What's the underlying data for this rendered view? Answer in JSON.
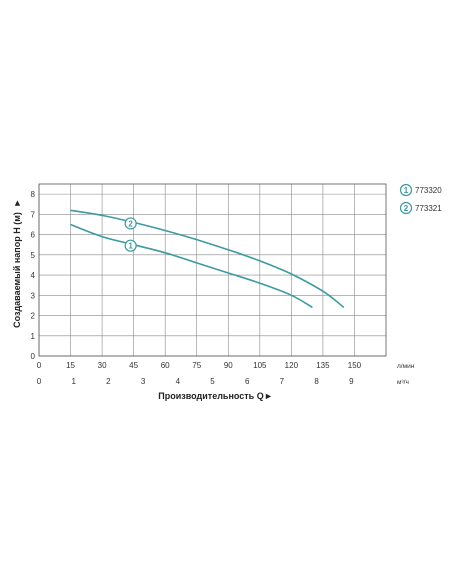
{
  "chart_data": {
    "type": "line",
    "ylabel": "Создаваемый напор H (м)",
    "xlabel": "Производительность Q",
    "ylim": [
      0,
      8.5
    ],
    "y_ticks": [
      0,
      1,
      2,
      3,
      4,
      5,
      6,
      7,
      8
    ],
    "x_primary_unit": "л/мин",
    "x_primary_ticks": [
      "0",
      "15",
      "30",
      "45",
      "60",
      "75",
      "90",
      "105",
      "120",
      "135",
      "150"
    ],
    "x_secondary_unit": "м³/ч",
    "x_secondary_ticks": [
      "0",
      "1",
      "2",
      "3",
      "4",
      "5",
      "6",
      "7",
      "8",
      "9"
    ],
    "grid": true,
    "legend_position": "right",
    "series": [
      {
        "name": "773320",
        "marker": "1",
        "color": "#3c9aa0",
        "x": [
          15,
          30,
          45,
          60,
          75,
          90,
          105,
          120,
          130
        ],
        "y": [
          6.5,
          5.9,
          5.5,
          5.1,
          4.6,
          4.1,
          3.6,
          3.0,
          2.4
        ]
      },
      {
        "name": "773321",
        "marker": "2",
        "color": "#3c9aa0",
        "x": [
          15,
          30,
          45,
          60,
          75,
          90,
          105,
          120,
          135,
          145
        ],
        "y": [
          7.2,
          6.95,
          6.6,
          6.2,
          5.75,
          5.25,
          4.7,
          4.05,
          3.2,
          2.4
        ]
      }
    ]
  }
}
